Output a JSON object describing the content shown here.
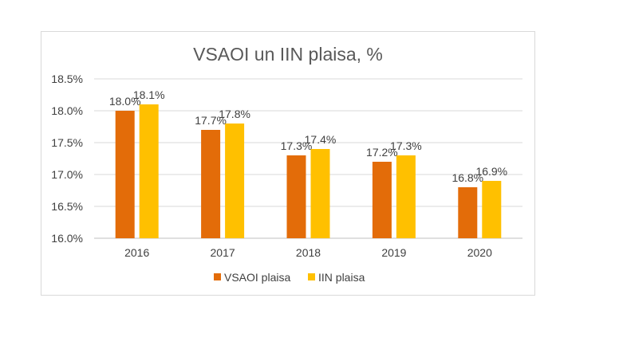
{
  "chart_data": {
    "type": "bar",
    "title": "VSAOI un IIN plaisa, %",
    "categories": [
      "2016",
      "2017",
      "2018",
      "2019",
      "2020"
    ],
    "series": [
      {
        "name": "VSAOI plaisa",
        "color": "#e36c09",
        "values": [
          18.0,
          17.7,
          17.3,
          17.2,
          16.8
        ],
        "labels": [
          "18.0%",
          "17.7%",
          "17.3%",
          "17.2%",
          "16.8%"
        ]
      },
      {
        "name": "IIN plaisa",
        "color": "#ffc000",
        "values": [
          18.1,
          17.8,
          17.4,
          17.3,
          16.9
        ],
        "labels": [
          "18.1%",
          "17.8%",
          "17.4%",
          "17.3%",
          "16.9%"
        ]
      }
    ],
    "yticks": [
      "16.0%",
      "16.5%",
      "17.0%",
      "17.5%",
      "18.0%",
      "18.5%"
    ],
    "ylim": [
      16.0,
      18.5
    ],
    "grid": true,
    "legend": "bottom"
  }
}
